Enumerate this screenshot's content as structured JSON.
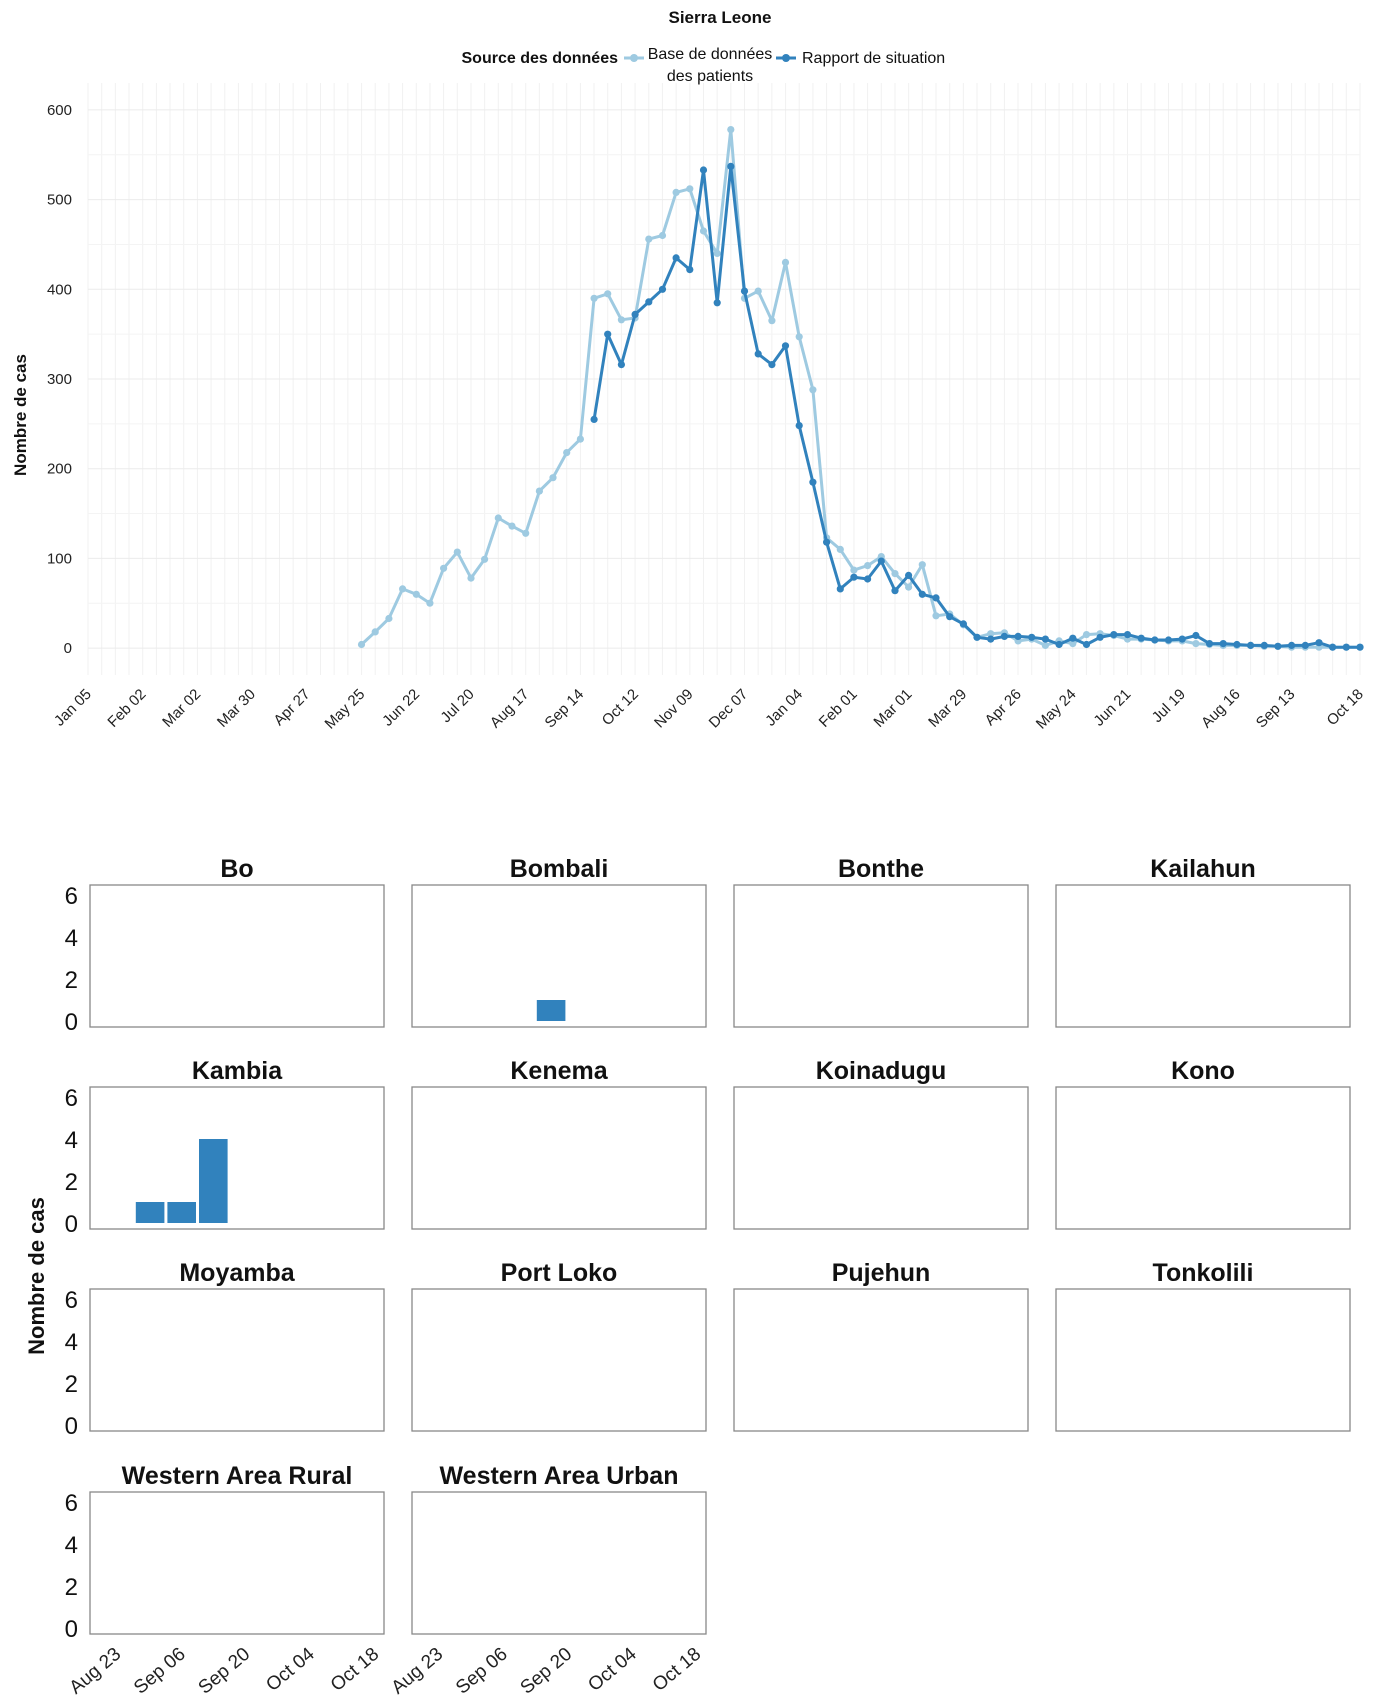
{
  "chart_data": [
    {
      "type": "line",
      "title": "Sierra Leone",
      "xlabel": "",
      "ylabel": "Nombre de cas",
      "legend": {
        "title": "Source des données",
        "position": "top",
        "entries": [
          {
            "lines": [
              "Base de données",
              "des patients"
            ],
            "color": "#9ecae1"
          },
          {
            "lines": [
              "Rapport de situation"
            ],
            "color": "#3182bd"
          }
        ]
      },
      "x_tick_labels": [
        "Jan 05",
        "Feb 02",
        "Mar 02",
        "Mar 30",
        "Apr 27",
        "May 25",
        "Jun 22",
        "Jul 20",
        "Aug 17",
        "Sep 14",
        "Oct 12",
        "Nov 09",
        "Dec 07",
        "Jan 04",
        "Feb 01",
        "Mar 01",
        "Mar 29",
        "Apr 26",
        "May 24",
        "Jun 21",
        "Jul 19",
        "Aug 16",
        "Sep 13",
        "Oct 18"
      ],
      "x_tick_weeks": [
        0,
        4,
        8,
        12,
        16,
        20,
        24,
        28,
        32,
        36,
        40,
        44,
        48,
        52,
        56,
        60,
        64,
        68,
        72,
        76,
        80,
        84,
        88,
        93
      ],
      "y_ticks": [
        0,
        100,
        200,
        300,
        400,
        500,
        600
      ],
      "ylim": [
        -30,
        630
      ],
      "xlim": [
        0,
        93
      ],
      "grid": true,
      "series": [
        {
          "name": "Base de données des patients",
          "color": "#9ecae1",
          "x": [
            20,
            21,
            22,
            23,
            24,
            25,
            26,
            27,
            28,
            29,
            30,
            31,
            32,
            33,
            34,
            35,
            36,
            37,
            38,
            39,
            40,
            41,
            42,
            43,
            44,
            45,
            46,
            47,
            48,
            49,
            50,
            51,
            52,
            53,
            54,
            55,
            56,
            57,
            58,
            59,
            60,
            61,
            62,
            63,
            64,
            65,
            66,
            67,
            68,
            69,
            70,
            71,
            72,
            73,
            74,
            75,
            76,
            77,
            78,
            79,
            80,
            81,
            82,
            83,
            84,
            85,
            86,
            87,
            88,
            89,
            90,
            91,
            92,
            93
          ],
          "values": [
            4,
            18,
            33,
            66,
            60,
            50,
            89,
            107,
            78,
            99,
            145,
            136,
            128,
            175,
            190,
            218,
            233,
            390,
            395,
            366,
            368,
            456,
            460,
            508,
            512,
            465,
            440,
            578,
            390,
            398,
            365,
            430,
            347,
            288,
            123,
            110,
            87,
            92,
            102,
            83,
            68,
            93,
            36,
            38,
            26,
            12,
            16,
            17,
            8,
            10,
            3,
            8,
            5,
            15,
            16,
            14,
            10,
            10,
            9,
            8,
            8,
            5,
            4,
            3,
            3,
            3,
            2,
            2,
            1,
            1,
            1,
            1,
            1,
            1
          ]
        },
        {
          "name": "Rapport de situation",
          "color": "#3182bd",
          "x": [
            37,
            38,
            39,
            40,
            41,
            42,
            43,
            44,
            45,
            46,
            47,
            48,
            49,
            50,
            51,
            52,
            53,
            54,
            55,
            56,
            57,
            58,
            59,
            60,
            61,
            62,
            63,
            64,
            65,
            66,
            67,
            68,
            69,
            70,
            71,
            72,
            73,
            74,
            75,
            76,
            77,
            78,
            79,
            80,
            81,
            82,
            83,
            84,
            85,
            86,
            87,
            88,
            89,
            90,
            91,
            92,
            93
          ],
          "values": [
            255,
            350,
            316,
            372,
            386,
            400,
            435,
            422,
            533,
            385,
            537,
            398,
            328,
            316,
            337,
            248,
            185,
            118,
            66,
            79,
            77,
            97,
            64,
            81,
            60,
            56,
            35,
            27,
            12,
            10,
            13,
            13,
            12,
            10,
            4,
            11,
            4,
            12,
            15,
            15,
            11,
            9,
            9,
            10,
            14,
            5,
            5,
            4,
            3,
            3,
            2,
            3,
            3,
            6,
            1,
            1,
            1
          ]
        }
      ]
    },
    {
      "type": "bar",
      "title": "",
      "ylabel": "Nombre de cas",
      "ylim": [
        0,
        6
      ],
      "y_ticks": [
        0,
        2,
        4,
        6
      ],
      "x_tick_labels": [
        "Aug 23",
        "Sep 06",
        "Sep 20",
        "Oct 04",
        "Oct 18"
      ],
      "facets": [
        {
          "name": "Bo",
          "bars": []
        },
        {
          "name": "Bombali",
          "bars": [
            {
              "week": 3,
              "value": 1
            }
          ]
        },
        {
          "name": "Bonthe",
          "bars": []
        },
        {
          "name": "Kailahun",
          "bars": []
        },
        {
          "name": "Kambia",
          "bars": [
            {
              "week": 0.5,
              "value": 1
            },
            {
              "week": 1.5,
              "value": 1
            },
            {
              "week": 2.5,
              "value": 4
            }
          ]
        },
        {
          "name": "Kenema",
          "bars": []
        },
        {
          "name": "Koinadugu",
          "bars": []
        },
        {
          "name": "Kono",
          "bars": []
        },
        {
          "name": "Moyamba",
          "bars": []
        },
        {
          "name": "Port Loko",
          "bars": []
        },
        {
          "name": "Pujehun",
          "bars": []
        },
        {
          "name": "Tonkolili",
          "bars": []
        },
        {
          "name": "Western Area Rural",
          "bars": []
        },
        {
          "name": "Western Area Urban",
          "bars": []
        }
      ],
      "bar_color": "#3182bd"
    }
  ]
}
